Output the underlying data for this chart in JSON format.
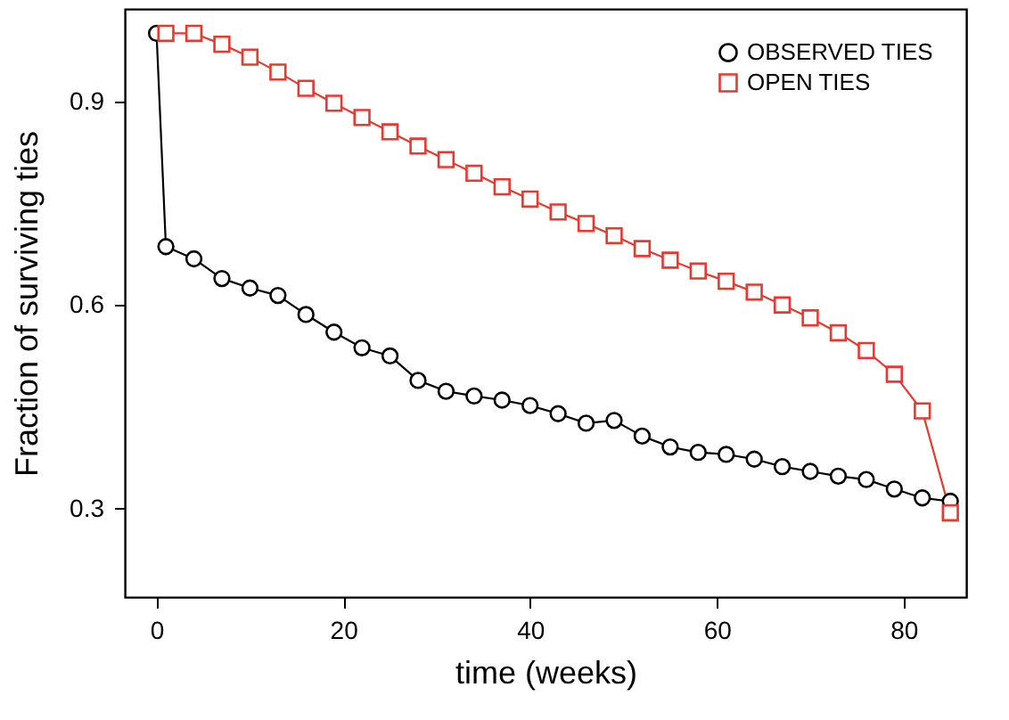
{
  "chart_data": {
    "type": "line",
    "xlabel": "time (weeks)",
    "ylabel": "Fraction of surviving ties",
    "xlim": [
      -3.4,
      86.7
    ],
    "xticks": [
      0,
      20,
      40,
      60,
      80
    ],
    "ylim": [
      0.17,
      1.036
    ],
    "yticks": [
      0.3,
      0.6,
      0.9
    ],
    "grid": false,
    "legend": "top right",
    "line_style": "solid",
    "series": [
      {
        "name": "OBSERVED TIES",
        "color": "#000000",
        "marker": "circle",
        "x": [
          0,
          1,
          4,
          7,
          10,
          13,
          16,
          19,
          22,
          25,
          28,
          31,
          34,
          37,
          40,
          43,
          46,
          49,
          52,
          55,
          58,
          61,
          64,
          67,
          70,
          73,
          76,
          79,
          82,
          85
        ],
        "values": [
          1.0,
          0.686,
          0.668,
          0.639,
          0.625,
          0.614,
          0.586,
          0.56,
          0.537,
          0.525,
          0.489,
          0.473,
          0.466,
          0.46,
          0.452,
          0.44,
          0.426,
          0.43,
          0.407,
          0.391,
          0.383,
          0.38,
          0.373,
          0.362,
          0.355,
          0.348,
          0.343,
          0.329,
          0.316,
          0.311
        ]
      },
      {
        "name": "OPEN TIES",
        "color": "#e8392f",
        "marker": "square",
        "x": [
          1,
          4,
          7,
          10,
          13,
          16,
          19,
          22,
          25,
          28,
          31,
          34,
          37,
          40,
          43,
          46,
          49,
          52,
          55,
          58,
          61,
          64,
          67,
          70,
          73,
          76,
          79,
          82,
          85
        ],
        "values": [
          1.0,
          1.0,
          0.984,
          0.965,
          0.943,
          0.919,
          0.897,
          0.876,
          0.855,
          0.834,
          0.814,
          0.794,
          0.774,
          0.756,
          0.737,
          0.72,
          0.702,
          0.683,
          0.666,
          0.65,
          0.635,
          0.619,
          0.6,
          0.581,
          0.559,
          0.533,
          0.498,
          0.444,
          0.294
        ]
      }
    ]
  }
}
